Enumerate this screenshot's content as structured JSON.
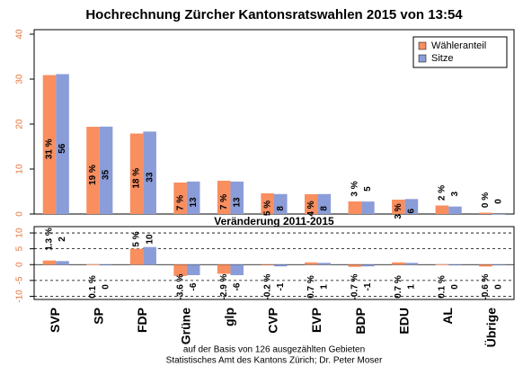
{
  "chart_data": [
    {
      "type": "bar",
      "title": "Hochrechnung Zürcher Kantonsratswahlen 2015 von 13:54",
      "categories": [
        "SVP",
        "SP",
        "FDP",
        "Grüne",
        "glp",
        "CVP",
        "EVP",
        "BDP",
        "EDU",
        "AL",
        "Übrige"
      ],
      "series": [
        {
          "name": "Wähleranteil",
          "color": "#f98e5f",
          "values": [
            30.9,
            19.4,
            17.9,
            7.0,
            7.4,
            4.6,
            4.4,
            2.8,
            3.2,
            1.9,
            0.3
          ],
          "value_labels": [
            "31 %",
            "19 %",
            "18 %",
            "7 %",
            "7 %",
            "5 %",
            "4 %",
            "3 %",
            "3 %",
            "2 %",
            "0 %"
          ]
        },
        {
          "name": "Sitze",
          "color": "#8b9dd8",
          "axis": "y2",
          "values": [
            56,
            35,
            33,
            13,
            13,
            8,
            8,
            5,
            6,
            3,
            0
          ]
        }
      ],
      "ylim": [
        0,
        41
      ],
      "yticks": [
        0,
        10,
        20,
        30,
        40
      ],
      "y2lim": [
        0,
        73.8
      ],
      "legend": "top-right",
      "grid": false
    },
    {
      "type": "bar",
      "title": "Veränderung 2011-2015",
      "series": [
        {
          "name": "Wähleranteil",
          "color": "#f98e5f",
          "values": [
            1.3,
            0.1,
            5,
            -3.6,
            -2.9,
            -0.2,
            0.7,
            -0.7,
            0.7,
            0.1,
            -0.6
          ],
          "value_labels": [
            "1.3 %",
            "0.1 %",
            "5 %",
            "-3.6 %",
            "-2.9 %",
            "-0.2 %",
            "0.7 %",
            "-0.7 %",
            "0.7 %",
            "0.1 %",
            "-0.6 %"
          ]
        },
        {
          "name": "Sitze",
          "color": "#8b9dd8",
          "axis": "y2",
          "values": [
            2,
            0,
            10,
            -6,
            -6,
            -1,
            1,
            -1,
            1,
            0,
            0
          ]
        }
      ],
      "ylim": [
        -11,
        12
      ],
      "yticks": [
        -10,
        -5,
        0,
        5,
        10
      ],
      "y2lim": [
        -19.8,
        21.6
      ],
      "grid": true
    }
  ],
  "footer": [
    "auf der Basis von 126 ausgezählten Gebieten",
    "Statistisches Amt des Kantons Zürich; Dr. Peter Moser"
  ]
}
